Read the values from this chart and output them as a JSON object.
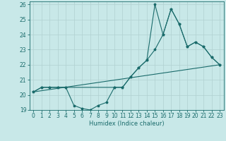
{
  "xlabel": "Humidex (Indice chaleur)",
  "bg_color": "#c8e8e8",
  "grid_color": "#b0d0d0",
  "line_color": "#1a6b6b",
  "xlim": [
    -0.5,
    23.5
  ],
  "ylim": [
    19.0,
    26.2
  ],
  "yticks": [
    19,
    20,
    21,
    22,
    23,
    24,
    25,
    26
  ],
  "xticks": [
    0,
    1,
    2,
    3,
    4,
    5,
    6,
    7,
    8,
    9,
    10,
    11,
    12,
    13,
    14,
    15,
    16,
    17,
    18,
    19,
    20,
    21,
    22,
    23
  ],
  "line1_x": [
    0,
    1,
    2,
    3,
    4,
    5,
    6,
    7,
    8,
    9,
    10,
    11,
    12,
    13,
    14,
    15,
    16,
    17,
    18,
    19,
    20,
    21,
    22,
    23
  ],
  "line1_y": [
    20.2,
    20.5,
    20.5,
    20.5,
    20.5,
    19.3,
    19.1,
    19.0,
    19.3,
    19.5,
    20.5,
    20.5,
    21.2,
    21.8,
    22.3,
    26.0,
    24.0,
    25.7,
    24.7,
    23.2,
    23.5,
    23.2,
    22.5,
    22.0
  ],
  "line2_x": [
    0,
    1,
    2,
    3,
    4,
    10,
    11,
    12,
    13,
    14,
    15,
    16,
    17,
    18,
    19,
    20,
    21,
    22,
    23
  ],
  "line2_y": [
    20.2,
    20.5,
    20.5,
    20.5,
    20.5,
    20.5,
    20.5,
    21.2,
    21.8,
    22.3,
    23.0,
    24.0,
    25.7,
    24.7,
    23.2,
    23.5,
    23.2,
    22.5,
    22.0
  ],
  "line3_x": [
    0,
    23
  ],
  "line3_y": [
    20.2,
    22.0
  ],
  "xlabel_fontsize": 6,
  "tick_fontsize": 5.5,
  "linewidth": 0.8,
  "markersize": 2.5
}
